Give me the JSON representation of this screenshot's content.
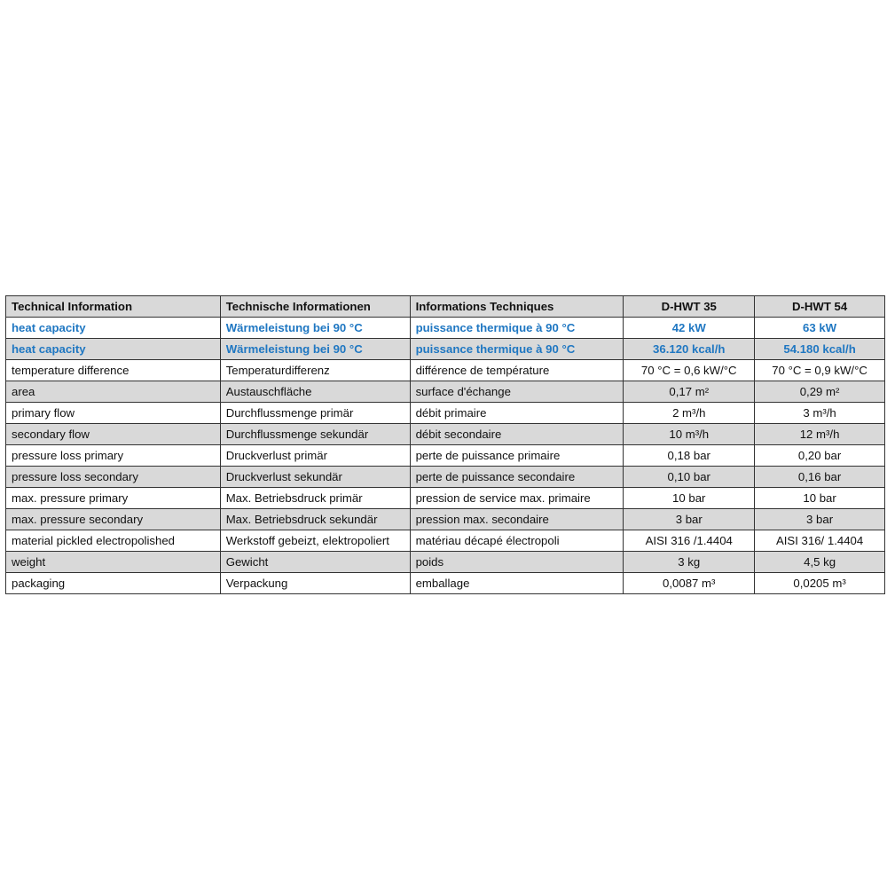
{
  "colors": {
    "accent": "#1f77c2",
    "shade": "#d9d9d9"
  },
  "header": [
    "Technical Information",
    "Technische Informationen",
    "Informations Techniques",
    "D-HWT 35",
    "D-HWT 54"
  ],
  "rows": [
    [
      "heat capacity",
      "Wärmeleistung bei 90 °C",
      "puissance thermique à 90 °C",
      "42 kW",
      "63 kW"
    ],
    [
      "heat capacity",
      "Wärmeleistung bei 90 °C",
      "puissance thermique à 90 °C",
      "36.120 kcal/h",
      "54.180 kcal/h"
    ],
    [
      "temperature difference",
      "Temperaturdifferenz",
      "différence de température",
      "70 °C = 0,6 kW/°C",
      "70 °C = 0,9 kW/°C"
    ],
    [
      "area",
      "Austauschfläche",
      "surface d'échange",
      "0,17 m²",
      "0,29 m²"
    ],
    [
      "primary flow",
      "Durchflussmenge primär",
      "débit primaire",
      "2 m³/h",
      "3 m³/h"
    ],
    [
      "secondary flow",
      "Durchflussmenge sekundär",
      "débit secondaire",
      "10 m³/h",
      "12 m³/h"
    ],
    [
      "pressure loss primary",
      "Druckverlust primär",
      "perte de puissance primaire",
      "0,18 bar",
      "0,20 bar"
    ],
    [
      "pressure loss secondary",
      "Druckverlust sekundär",
      "perte de puissance secondaire",
      "0,10 bar",
      "0,16 bar"
    ],
    [
      "max. pressure primary",
      "Max. Betriebsdruck primär",
      "pression de service max. primaire",
      "10 bar",
      "10 bar"
    ],
    [
      "max. pressure secondary",
      "Max. Betriebsdruck sekundär",
      "pression max. secondaire",
      "3 bar",
      "3 bar"
    ],
    [
      "material pickled electropolished",
      "Werkstoff gebeizt, elektropoliert",
      "matériau décapé électropoli",
      "AISI 316 /1.4404",
      "AISI 316/ 1.4404"
    ],
    [
      "weight",
      "Gewicht",
      "poids",
      "3 kg",
      "4,5 kg"
    ],
    [
      "packaging",
      "Verpackung",
      "emballage",
      "0,0087 m³",
      "0,0205 m³"
    ]
  ]
}
